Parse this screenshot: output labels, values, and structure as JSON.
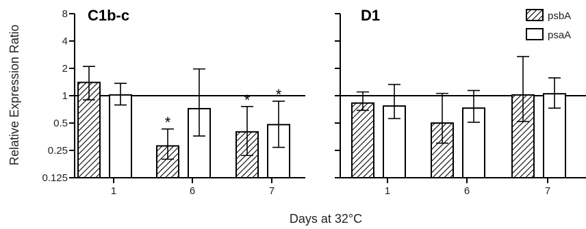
{
  "chart_data": {
    "type": "bar",
    "ylabel": "Relative Expression Ratio",
    "xlabel": "Days at 32°C",
    "yscale": "log2",
    "ylim": [
      0.125,
      8
    ],
    "yticks": [
      {
        "value": 0.125,
        "label": "0.125"
      },
      {
        "value": 0.25,
        "label": "0.25"
      },
      {
        "value": 0.5,
        "label": "0.5"
      },
      {
        "value": 1,
        "label": "1"
      },
      {
        "value": 2,
        "label": "2"
      },
      {
        "value": 4,
        "label": "4"
      },
      {
        "value": 8,
        "label": "8"
      }
    ],
    "reference_line": 1,
    "legend": {
      "placement": "top-right",
      "entries": [
        {
          "name": "psbA",
          "style": "hatched"
        },
        {
          "name": "psaA",
          "style": "open"
        }
      ]
    },
    "panels": [
      {
        "title": "C1b-c",
        "categories": [
          "1",
          "6",
          "7"
        ],
        "series": [
          {
            "name": "psbA",
            "values": [
              1.4,
              0.28,
              0.4
            ],
            "err_low": [
              0.9,
              0.2,
              0.22
            ],
            "err_high": [
              2.1,
              0.43,
              0.76
            ],
            "significant": [
              false,
              true,
              true
            ]
          },
          {
            "name": "psaA",
            "values": [
              1.02,
              0.72,
              0.48
            ],
            "err_low": [
              0.79,
              0.36,
              0.27
            ],
            "err_high": [
              1.37,
              1.97,
              0.87
            ],
            "significant": [
              false,
              false,
              true
            ]
          }
        ]
      },
      {
        "title": "D1",
        "categories": [
          "1",
          "6",
          "7"
        ],
        "series": [
          {
            "name": "psbA",
            "values": [
              0.83,
              0.5,
              1.02
            ],
            "err_low": [
              0.69,
              0.3,
              0.52
            ],
            "err_high": [
              1.1,
              1.06,
              2.7
            ],
            "significant": [
              false,
              false,
              false
            ]
          },
          {
            "name": "psaA",
            "values": [
              0.77,
              0.73,
              1.05
            ],
            "err_low": [
              0.56,
              0.51,
              0.73
            ],
            "err_high": [
              1.33,
              1.14,
              1.57
            ],
            "significant": [
              false,
              false,
              false
            ]
          }
        ]
      }
    ]
  }
}
